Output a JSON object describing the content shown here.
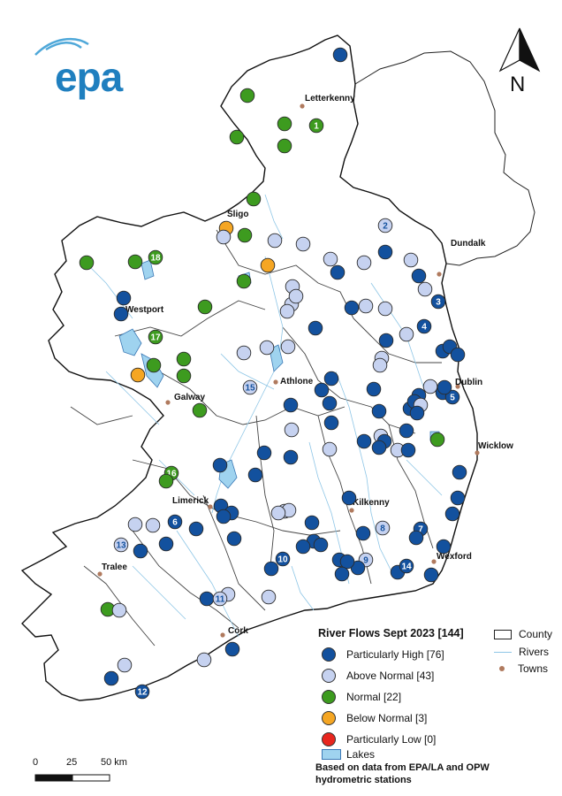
{
  "logo": {
    "text": "epa",
    "color": "#1f7fbf"
  },
  "north_arrow": {
    "label": "N"
  },
  "towns": [
    {
      "name": "Letterkenny"
    },
    {
      "name": "Sligo"
    },
    {
      "name": "Dundalk"
    },
    {
      "name": "Westport"
    },
    {
      "name": "Athlone"
    },
    {
      "name": "Dublin"
    },
    {
      "name": "Galway"
    },
    {
      "name": "Wicklow"
    },
    {
      "name": "Limerick"
    },
    {
      "name": "Kilkenny"
    },
    {
      "name": "Tralee"
    },
    {
      "name": "Wexford"
    },
    {
      "name": "Cork"
    }
  ],
  "station_labels": [
    "1",
    "2",
    "3",
    "4",
    "5",
    "6",
    "7",
    "8",
    "9",
    "10",
    "11",
    "12",
    "13",
    "14",
    "15",
    "16",
    "17",
    "18"
  ],
  "legend": {
    "title": "River Flows Sept 2023 [144]",
    "categories": [
      {
        "label": "Particularly High [76]",
        "color": "#13519e"
      },
      {
        "label": "Above Normal [43]",
        "color": "#c6d2f0"
      },
      {
        "label": "Normal [22]",
        "color": "#3d9b1f"
      },
      {
        "label": "Below Normal [3]",
        "color": "#f5a623"
      },
      {
        "label": "Particularly Low [0]",
        "color": "#e8261e"
      }
    ],
    "lakes_label": "Lakes",
    "source": "Based on data from EPA/LA and OPW hydrometric stations"
  },
  "legend2": {
    "county": "County",
    "rivers": "Rivers",
    "towns": "Towns"
  },
  "scale_bar": {
    "labels": [
      "0",
      "25",
      "50 km"
    ]
  }
}
